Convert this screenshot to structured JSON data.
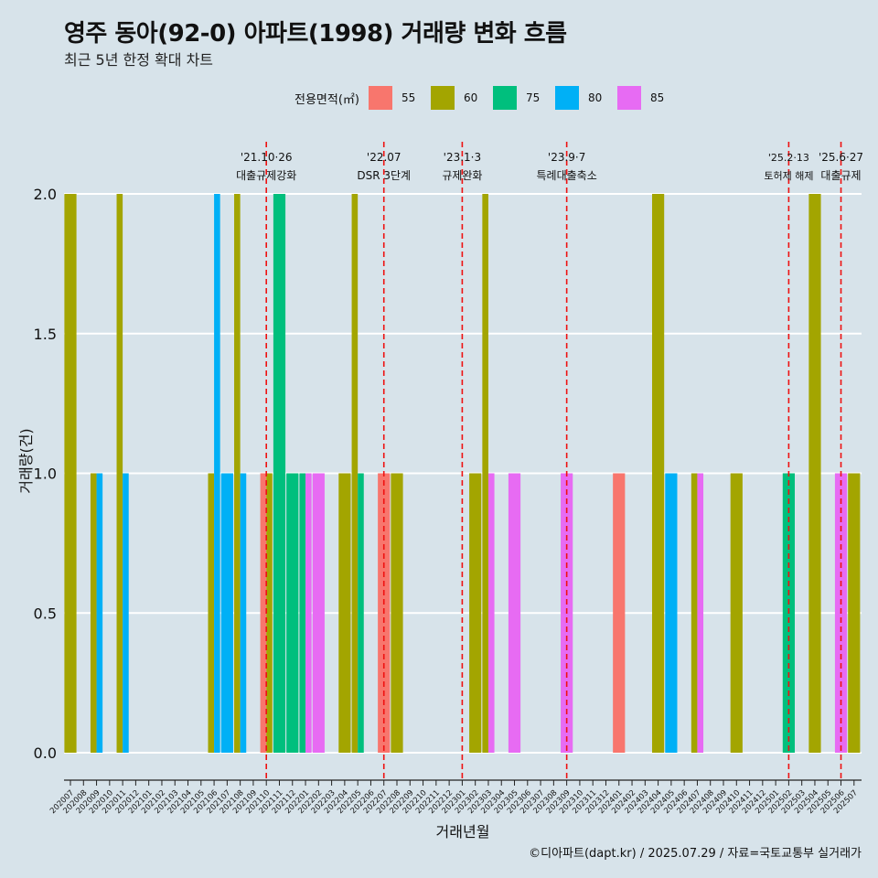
{
  "title": "영주 동아(92-0) 아파트(1998) 거래량 변화 흐름",
  "subtitle": "최근 5년 한정 확대 차트",
  "caption": "©디아파트(dapt.kr) / 2025.07.29 / 자료=국토교통부 실거래가",
  "legend": {
    "title": "전용면적(㎡)",
    "items": [
      {
        "label": "55",
        "color": "#f8766d"
      },
      {
        "label": "60",
        "color": "#a3a500"
      },
      {
        "label": "75",
        "color": "#00bf7d"
      },
      {
        "label": "80",
        "color": "#00b0f6"
      },
      {
        "label": "85",
        "color": "#e76bf3"
      }
    ]
  },
  "chart_data": {
    "type": "bar",
    "xlabel": "거래년월",
    "ylabel": "거래량(건)",
    "ylim": [
      0,
      2.0
    ],
    "yticks": [
      "0.0",
      "0.5",
      "1.0",
      "1.5",
      "2.0"
    ],
    "grid": true,
    "categories": [
      "202007",
      "202008",
      "202009",
      "202010",
      "202011",
      "202012",
      "202101",
      "202102",
      "202103",
      "202104",
      "202105",
      "202106",
      "202107",
      "202108",
      "202109",
      "202110",
      "202111",
      "202112",
      "202201",
      "202202",
      "202203",
      "202204",
      "202205",
      "202206",
      "202207",
      "202208",
      "202209",
      "202210",
      "202211",
      "202212",
      "202301",
      "202302",
      "202303",
      "202304",
      "202305",
      "202306",
      "202307",
      "202308",
      "202309",
      "202310",
      "202311",
      "202312",
      "202401",
      "202402",
      "202403",
      "202404",
      "202405",
      "202406",
      "202407",
      "202408",
      "202409",
      "202410",
      "202411",
      "202412",
      "202501",
      "202502",
      "202503",
      "202504",
      "202505",
      "202506",
      "202507"
    ],
    "series": [
      {
        "name": "55",
        "color": "#f8766d",
        "values": [
          0,
          0,
          0,
          0,
          0,
          0,
          0,
          0,
          0,
          0,
          0,
          0,
          0,
          0,
          0,
          1,
          0,
          0,
          0,
          0,
          0,
          0,
          0,
          0,
          1,
          0,
          0,
          0,
          0,
          0,
          0,
          0,
          0,
          0,
          0,
          0,
          0,
          0,
          0,
          0,
          0,
          0,
          1,
          0,
          0,
          0,
          0,
          0,
          0,
          0,
          0,
          0,
          0,
          0,
          0,
          0,
          0,
          0,
          0,
          0,
          0
        ]
      },
      {
        "name": "60",
        "color": "#a3a500",
        "values": [
          2,
          0,
          1,
          0,
          2,
          0,
          0,
          0,
          0,
          0,
          0,
          1,
          0,
          2,
          0,
          1,
          0,
          0,
          0,
          0,
          0,
          1,
          2,
          0,
          0,
          1,
          0,
          0,
          0,
          0,
          0,
          1,
          2,
          0,
          0,
          0,
          0,
          0,
          0,
          0,
          0,
          0,
          0,
          0,
          0,
          2,
          0,
          0,
          1,
          0,
          0,
          1,
          0,
          0,
          0,
          0,
          0,
          2,
          0,
          0,
          1
        ]
      },
      {
        "name": "75",
        "color": "#00bf7d",
        "values": [
          0,
          0,
          0,
          0,
          0,
          0,
          0,
          0,
          0,
          0,
          0,
          0,
          0,
          0,
          0,
          0,
          2,
          1,
          1,
          0,
          0,
          0,
          1,
          0,
          0,
          0,
          0,
          0,
          0,
          0,
          0,
          0,
          0,
          0,
          0,
          0,
          0,
          0,
          0,
          0,
          0,
          0,
          0,
          0,
          0,
          0,
          0,
          0,
          0,
          0,
          0,
          0,
          0,
          0,
          0,
          1,
          0,
          0,
          0,
          0,
          0
        ]
      },
      {
        "name": "80",
        "color": "#00b0f6",
        "values": [
          0,
          0,
          1,
          0,
          1,
          0,
          0,
          0,
          0,
          0,
          0,
          2,
          1,
          1,
          0,
          0,
          0,
          0,
          0,
          0,
          0,
          0,
          0,
          0,
          0,
          0,
          0,
          0,
          0,
          0,
          0,
          0,
          0,
          0,
          0,
          0,
          0,
          0,
          0,
          0,
          0,
          0,
          0,
          0,
          0,
          0,
          1,
          0,
          0,
          0,
          0,
          0,
          0,
          0,
          0,
          0,
          0,
          0,
          0,
          0,
          0
        ]
      },
      {
        "name": "85",
        "color": "#e76bf3",
        "values": [
          0,
          0,
          0,
          0,
          0,
          0,
          0,
          0,
          0,
          0,
          0,
          0,
          0,
          0,
          0,
          0,
          0,
          0,
          1,
          1,
          0,
          0,
          0,
          0,
          0,
          0,
          0,
          0,
          0,
          0,
          0,
          0,
          1,
          0,
          1,
          0,
          0,
          0,
          1,
          0,
          0,
          0,
          0,
          0,
          0,
          0,
          0,
          0,
          1,
          0,
          0,
          0,
          0,
          0,
          0,
          0,
          0,
          0,
          0,
          1,
          0
        ]
      }
    ],
    "annotations": [
      {
        "category": "202110",
        "date": "'21.10·26",
        "label": "대출규제강화"
      },
      {
        "category": "202207",
        "date": "'22.07",
        "label": "DSR 3단계"
      },
      {
        "category": "202301",
        "date": "'23.1·3",
        "label": "규제완화"
      },
      {
        "category": "202309",
        "date": "'23.9·7",
        "label": "특례대출축소"
      },
      {
        "category": "202502",
        "date": "'25.2·13",
        "label": "토허제 해제"
      },
      {
        "category": "202506",
        "date": "'25.6·27",
        "label": "대출규제"
      }
    ]
  }
}
